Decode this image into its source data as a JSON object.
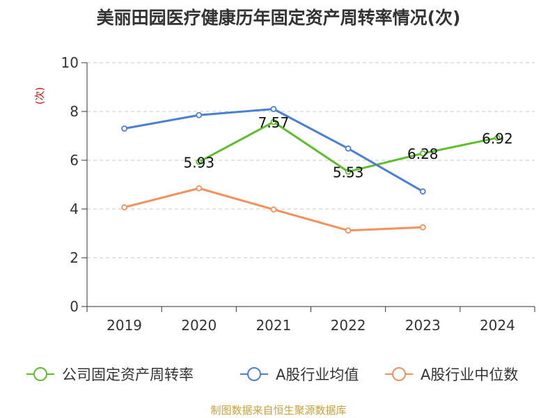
{
  "title": "美丽田园医疗健康历年固定资产周转率情况(次)",
  "source_note": "制图数据来自恒生聚源数据库",
  "chart_data": {
    "type": "line",
    "title": "美丽田园医疗健康历年固定资产周转率情况(次)",
    "xlabel": "",
    "ylabel": "(次)",
    "categories": [
      "2019",
      "2020",
      "2021",
      "2022",
      "2023",
      "2024"
    ],
    "ylim": [
      0,
      10
    ],
    "yticks": [
      0,
      2,
      4,
      6,
      8,
      10
    ],
    "grid": true,
    "legend_position": "bottom",
    "series": [
      {
        "name": "公司固定资产周转率",
        "color": "#5cbf2a",
        "values": [
          null,
          5.93,
          7.57,
          5.53,
          6.28,
          6.92
        ],
        "labels": [
          "",
          "5.93",
          "7.57",
          "5.53",
          "6.28",
          "6.92"
        ]
      },
      {
        "name": "A股行业均值",
        "color": "#4a7fd8",
        "values": [
          7.3,
          7.85,
          8.1,
          6.48,
          4.72,
          null
        ]
      },
      {
        "name": "A股行业中位数",
        "color": "#f5905a",
        "values": [
          4.07,
          4.85,
          3.98,
          3.12,
          3.25,
          null
        ]
      }
    ]
  }
}
